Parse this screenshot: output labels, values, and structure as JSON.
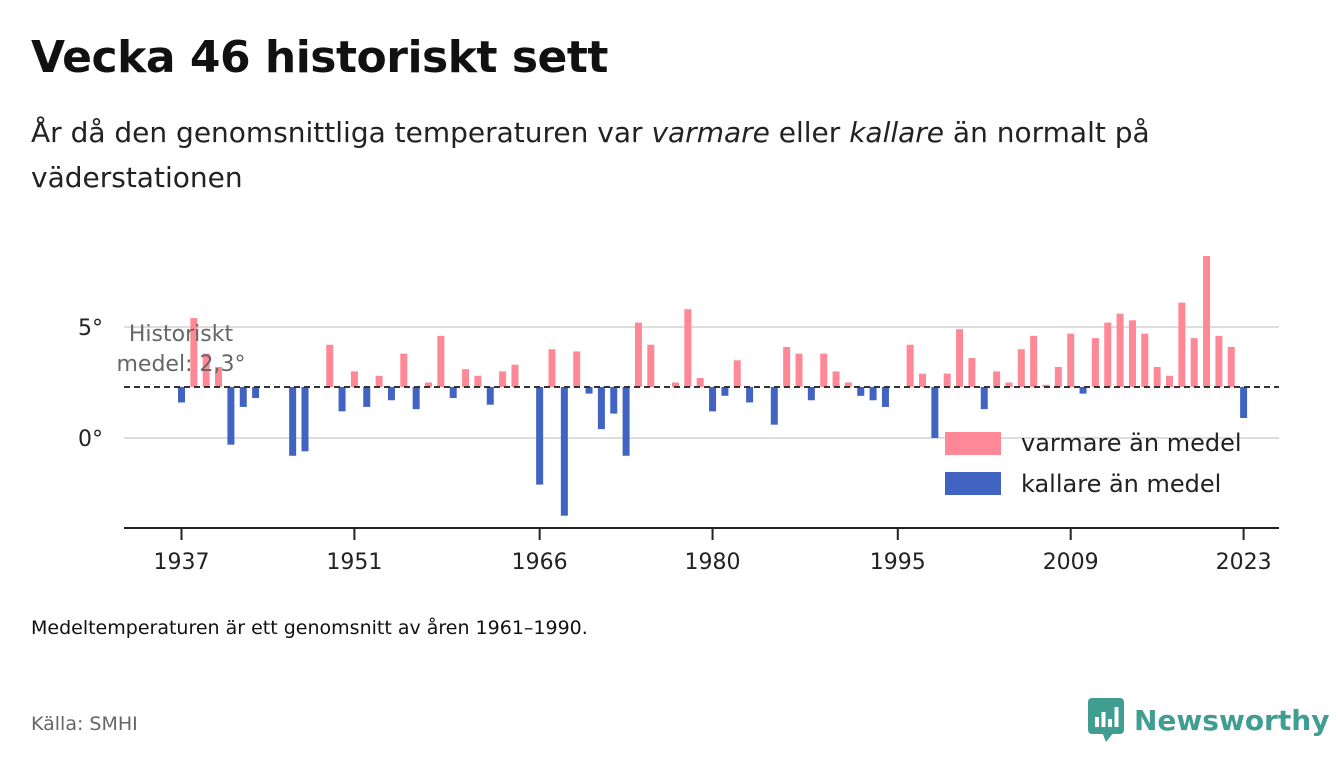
{
  "header": {
    "title": "Vecka 46 historiskt sett",
    "subtitle_pre": "År då den genomsnittliga temperaturen var ",
    "subtitle_warm": "varmare",
    "subtitle_mid": " eller ",
    "subtitle_cold": "kallare",
    "subtitle_post": " än normalt på väderstationen"
  },
  "footer": {
    "note": "Medeltemperaturen är ett genomsnitt av åren 1961–1990.",
    "source": "Källa: SMHI",
    "brand": "Newsworthy"
  },
  "colors": {
    "warm": "#ff8896",
    "cold": "#4163c1",
    "gridline": "#dddddd",
    "average_line": "#333333",
    "brand": "#3f9d91"
  },
  "icons": {
    "brand": "bar-chart-speech-bubble-icon"
  },
  "chart_data": {
    "type": "bar",
    "baseline": 2.3,
    "baseline_label_line1": "Historiskt",
    "baseline_label_line2": "medel: 2,3°",
    "ylim": [
      -4,
      8.5
    ],
    "yticks": [
      0,
      5
    ],
    "ytick_labels": [
      "0°",
      "5°"
    ],
    "xticks": [
      1937,
      1951,
      1966,
      1980,
      1995,
      2009,
      2023
    ],
    "xtick_labels": [
      "1937",
      "1951",
      "1966",
      "1980",
      "1995",
      "2009",
      "2023"
    ],
    "grid": true,
    "legend_position": "bottom-right",
    "series": [
      {
        "name": "varmare än medel",
        "color": "#ff8896"
      },
      {
        "name": "kallare än medel",
        "color": "#4163c1"
      }
    ],
    "years": [
      1937,
      1938,
      1939,
      1940,
      1941,
      1942,
      1943,
      1944,
      1945,
      1946,
      1947,
      1948,
      1949,
      1950,
      1951,
      1952,
      1953,
      1954,
      1955,
      1956,
      1957,
      1958,
      1959,
      1960,
      1961,
      1962,
      1963,
      1964,
      1965,
      1966,
      1967,
      1968,
      1969,
      1970,
      1971,
      1972,
      1973,
      1974,
      1975,
      1976,
      1977,
      1978,
      1979,
      1980,
      1981,
      1982,
      1983,
      1984,
      1985,
      1986,
      1987,
      1988,
      1989,
      1990,
      1991,
      1992,
      1993,
      1994,
      1995,
      1996,
      1997,
      1998,
      1999,
      2000,
      2001,
      2002,
      2003,
      2004,
      2005,
      2006,
      2007,
      2008,
      2009,
      2010,
      2011,
      2012,
      2013,
      2014,
      2015,
      2016,
      2017,
      2018,
      2019,
      2020,
      2021,
      2022,
      2023
    ],
    "values": [
      1.6,
      5.4,
      3.8,
      3.2,
      -0.3,
      1.4,
      1.8,
      null,
      null,
      -0.8,
      -0.6,
      null,
      4.2,
      1.2,
      3.0,
      1.4,
      2.8,
      1.7,
      3.8,
      1.3,
      2.5,
      4.6,
      1.8,
      3.1,
      2.8,
      1.5,
      3.0,
      3.3,
      null,
      -2.1,
      4.0,
      -3.5,
      3.9,
      2.0,
      0.4,
      1.1,
      -0.8,
      5.2,
      4.2,
      null,
      2.5,
      5.8,
      2.7,
      1.2,
      1.9,
      3.5,
      1.6,
      null,
      0.6,
      4.1,
      3.8,
      1.7,
      3.8,
      3.0,
      2.5,
      1.9,
      1.7,
      1.4,
      null,
      4.2,
      2.9,
      0.0,
      2.9,
      4.9,
      3.6,
      1.3,
      3.0,
      2.5,
      4.0,
      4.6,
      2.4,
      3.2,
      4.7,
      2.0,
      4.5,
      5.2,
      5.6,
      5.3,
      4.7,
      3.2,
      2.8,
      6.1,
      4.5,
      8.2,
      4.6,
      4.1,
      0.9
    ]
  }
}
